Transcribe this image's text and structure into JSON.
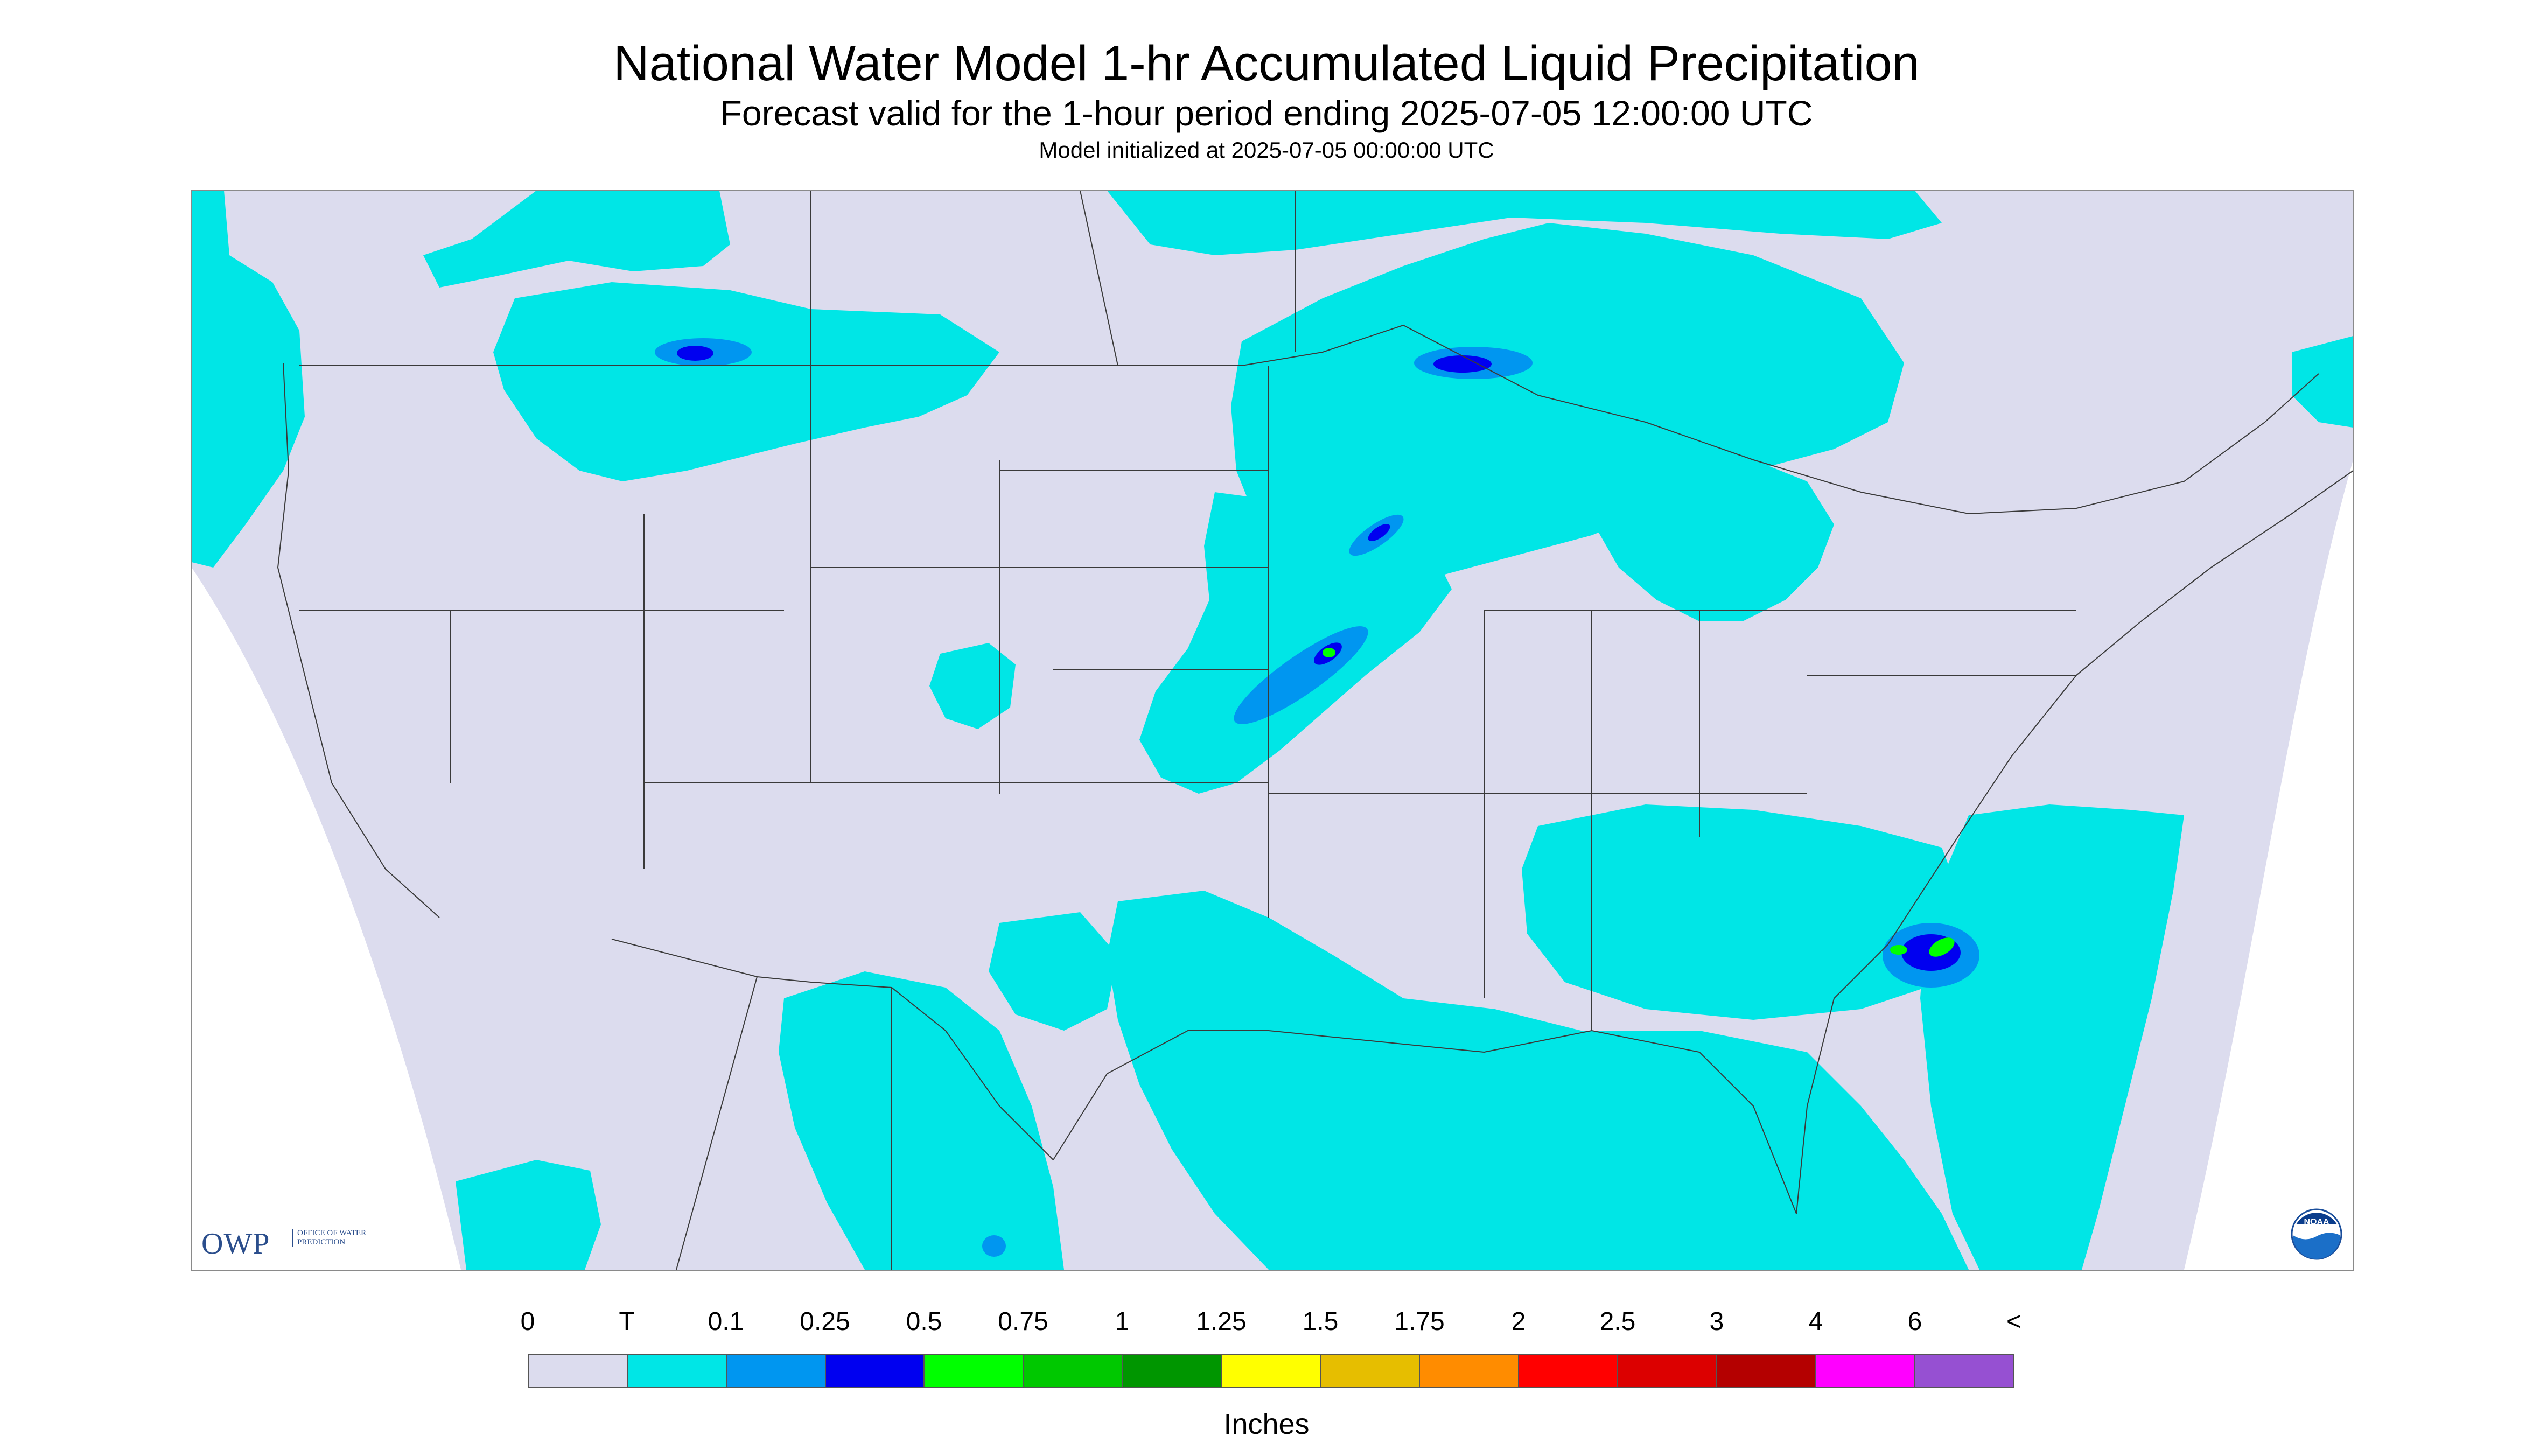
{
  "header": {
    "title": "National Water Model 1-hr Accumulated Liquid Precipitation",
    "subtitle": "Forecast valid for the 1-hour period ending 2025-07-05 12:00:00 UTC",
    "init_line": "Model initialized at 2025-07-05 00:00:00 UTC"
  },
  "map": {
    "background_color": "#dcdcee",
    "outside_domain_color": "#ffffff",
    "border_color": "#3a3a3a",
    "precip_regions": [
      {
        "area": "Pacific Northwest / northern Rockies",
        "category": "T"
      },
      {
        "area": "Montana / North Dakota",
        "category": "T",
        "core": "0.25"
      },
      {
        "area": "Upper Midwest / Lake Superior",
        "category": "T",
        "core": "0.25"
      },
      {
        "area": "Iowa / Missouri band",
        "category": "T",
        "core": "0.5"
      },
      {
        "area": "Great Lakes / Ontario",
        "category": "T"
      },
      {
        "area": "Texas / Gulf Coast",
        "category": "T"
      },
      {
        "area": "Southeast / Florida / Gulf of Mexico",
        "category": "T"
      },
      {
        "area": "Carolina coast offshore",
        "category": "T",
        "core": "1"
      },
      {
        "area": "Northern Mexico",
        "category": "T"
      },
      {
        "area": "Eastern Pacific (southwest corner)",
        "category": "T"
      }
    ]
  },
  "logos": {
    "owp_text": "OWP",
    "owp_sub": "OFFICE OF WATER PREDICTION",
    "noaa_text": "NOAA"
  },
  "legend": {
    "ticks": [
      "0",
      "T",
      "0.1",
      "0.25",
      "0.5",
      "0.75",
      "1",
      "1.25",
      "1.5",
      "1.75",
      "2",
      "2.5",
      "3",
      "4",
      "6",
      "<"
    ],
    "colors": [
      "#dcdcee",
      "#00e6e6",
      "#0096f0",
      "#0000f0",
      "#00ff00",
      "#00c800",
      "#009600",
      "#ffff00",
      "#e6be00",
      "#ff8c00",
      "#ff0000",
      "#dc0000",
      "#b40000",
      "#ff00ff",
      "#9650d2"
    ],
    "units": "Inches"
  }
}
